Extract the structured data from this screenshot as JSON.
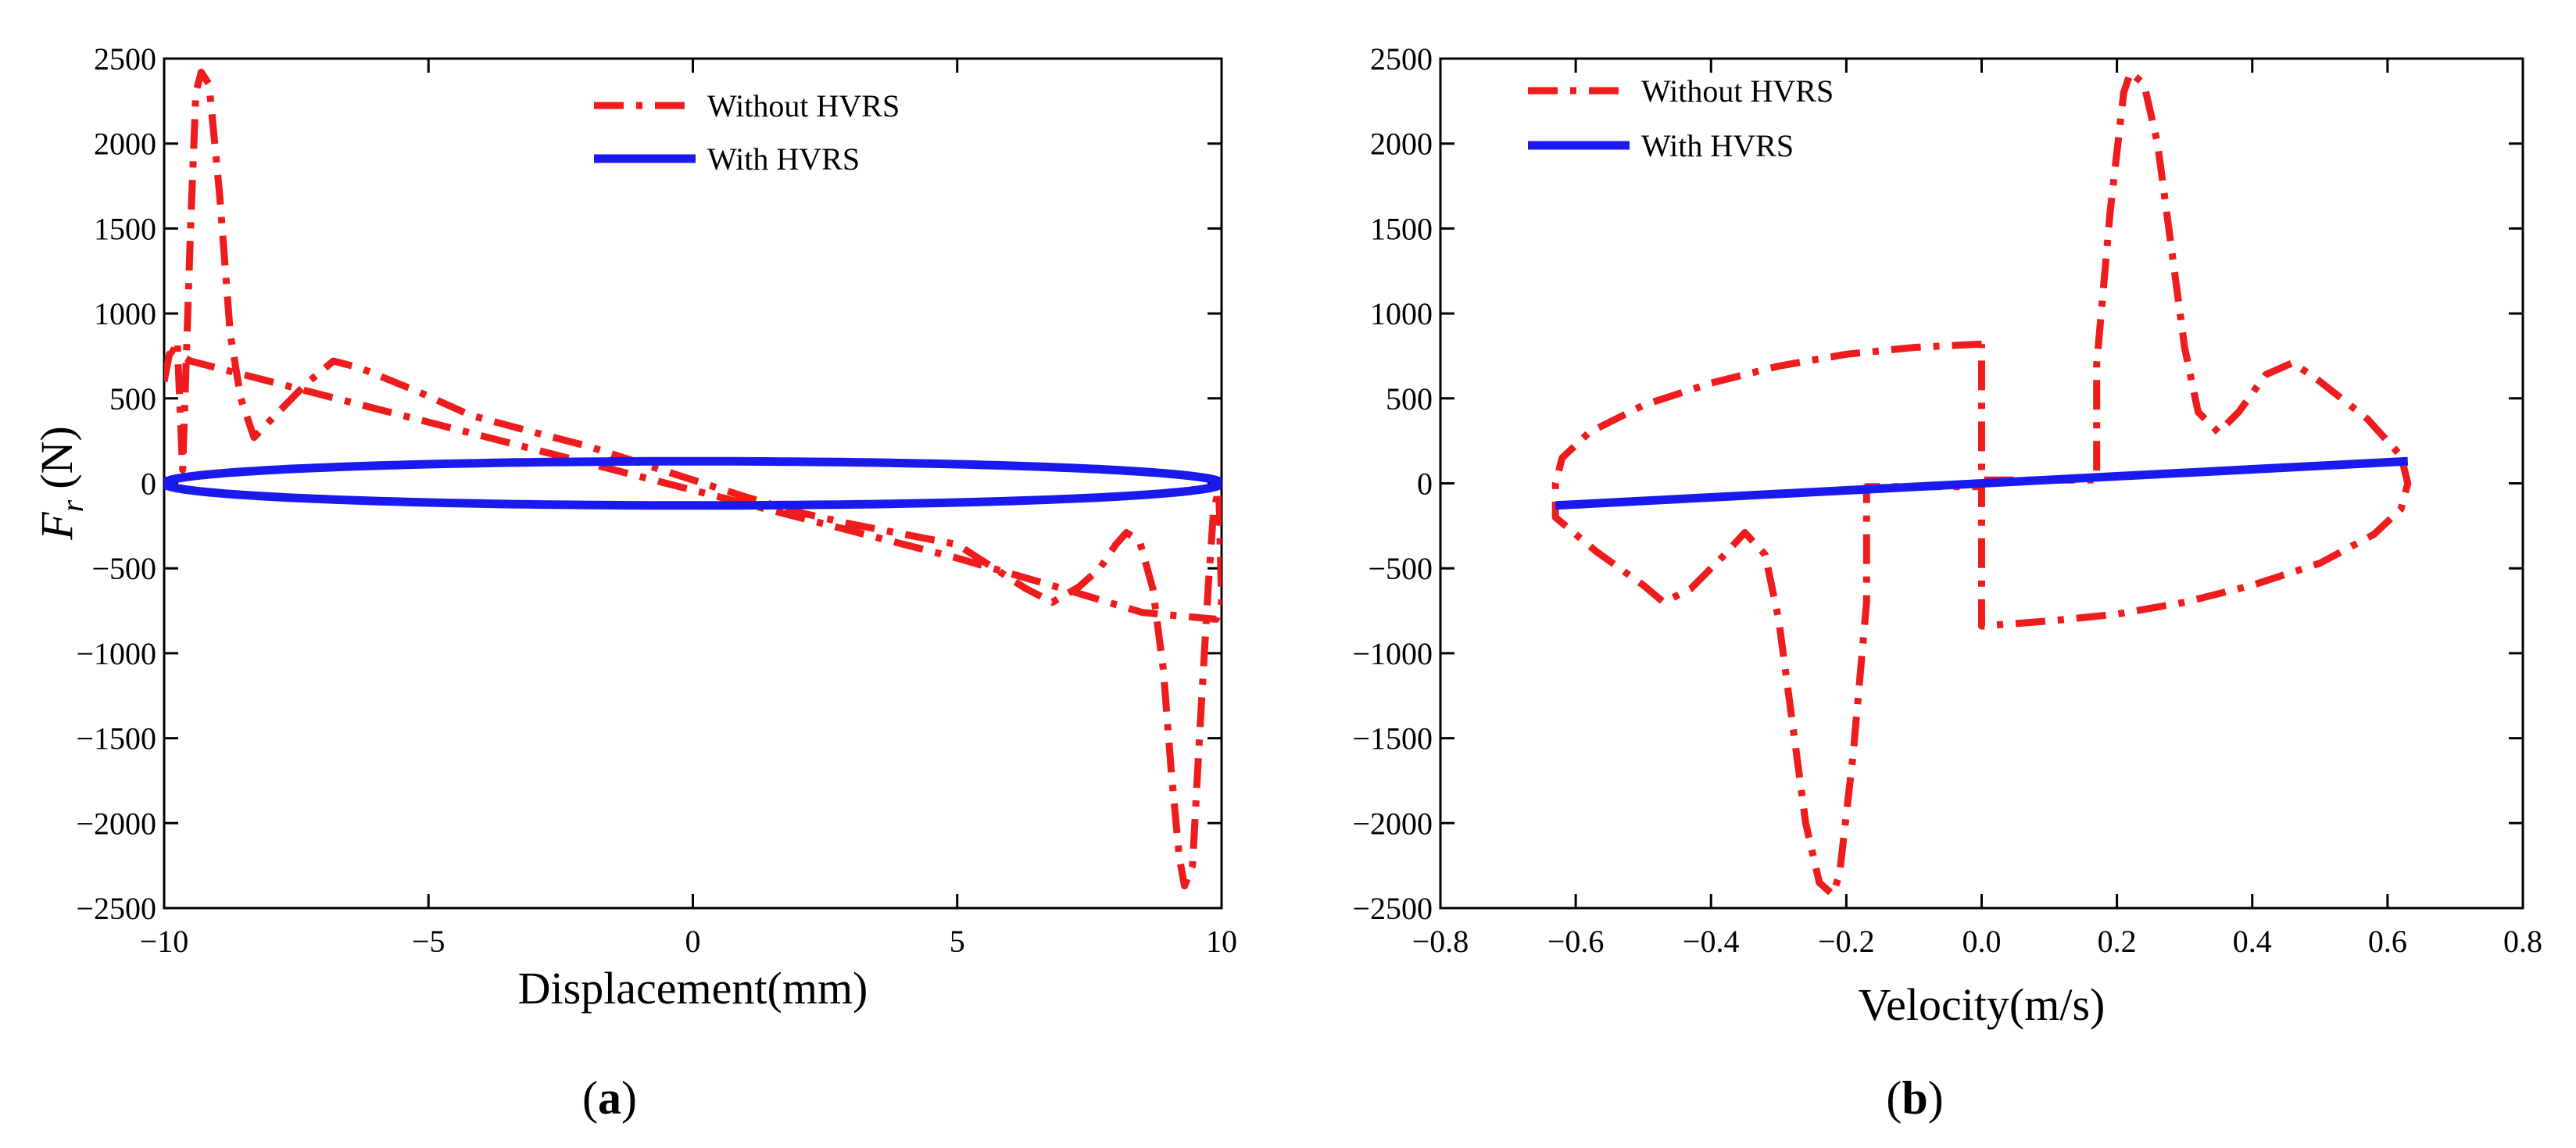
{
  "chart_data": [
    {
      "type": "line",
      "panel_label": [
        "(",
        "a",
        ")"
      ],
      "xlabel": "Displacement(mm)",
      "ylabel_main": "F",
      "ylabel_sub": "r",
      "ylabel_unit": "(N)",
      "xlim": [
        -10,
        10
      ],
      "ylim": [
        -2500,
        2500
      ],
      "xticks": [
        "−10",
        "−5",
        "0",
        "5",
        "10"
      ],
      "yticks": [
        "2500",
        "2000",
        "1500",
        "1000",
        "500",
        "0",
        "−500",
        "−1000",
        "−1500",
        "−2000",
        "−2500"
      ],
      "xtick_values": [
        -10,
        -5,
        0,
        5,
        10
      ],
      "ytick_values": [
        2500,
        2000,
        1500,
        1000,
        500,
        0,
        -500,
        -1000,
        -1500,
        -2000,
        -2500
      ],
      "legend_position": "top-center",
      "series": [
        {
          "name": "Without HVRS",
          "color": "#ee1c1c",
          "style": "dash-dot",
          "points": [
            [
              -10,
              600
            ],
            [
              -9.9,
              760
            ],
            [
              -9.75,
              820
            ],
            [
              -9.65,
              80
            ],
            [
              -9.5,
              1500
            ],
            [
              -9.4,
              2300
            ],
            [
              -9.3,
              2420
            ],
            [
              -9.15,
              2350
            ],
            [
              -8.95,
              1700
            ],
            [
              -8.75,
              880
            ],
            [
              -8.55,
              500
            ],
            [
              -8.3,
              270
            ],
            [
              -7.9,
              400
            ],
            [
              -7.3,
              590
            ],
            [
              -6.8,
              720
            ],
            [
              -6.3,
              680
            ],
            [
              -5.2,
              540
            ],
            [
              -4.2,
              400
            ],
            [
              -3.0,
              300
            ],
            [
              -2.0,
              220
            ],
            [
              -1.0,
              120
            ],
            [
              0,
              20
            ],
            [
              1.0,
              -80
            ],
            [
              2.0,
              -170
            ],
            [
              3.0,
              -240
            ],
            [
              4.0,
              -300
            ],
            [
              5.0,
              -360
            ],
            [
              5.8,
              -520
            ],
            [
              6.3,
              -620
            ],
            [
              6.8,
              -700
            ],
            [
              7.3,
              -610
            ],
            [
              7.7,
              -500
            ],
            [
              8.0,
              -360
            ],
            [
              8.2,
              -290
            ],
            [
              8.45,
              -340
            ],
            [
              8.7,
              -620
            ],
            [
              8.9,
              -1100
            ],
            [
              9.05,
              -1700
            ],
            [
              9.2,
              -2200
            ],
            [
              9.3,
              -2370
            ],
            [
              9.45,
              -2250
            ],
            [
              9.6,
              -1400
            ],
            [
              9.75,
              -600
            ],
            [
              9.85,
              -150
            ],
            [
              9.95,
              -40
            ],
            [
              10,
              -700
            ],
            [
              9.9,
              -800
            ],
            [
              8.5,
              -760
            ],
            [
              7.0,
              -620
            ],
            [
              5.0,
              -440
            ],
            [
              3.0,
              -280
            ],
            [
              1.0,
              -120
            ],
            [
              -1.0,
              40
            ],
            [
              -3.0,
              200
            ],
            [
              -5.0,
              360
            ],
            [
              -7.0,
              520
            ],
            [
              -8.5,
              640
            ],
            [
              -9.5,
              720
            ],
            [
              -9.9,
              790
            ]
          ]
        },
        {
          "name": "With HVRS",
          "color": "#1a1aee",
          "style": "solid",
          "shape": "ellipse",
          "center": [
            0,
            0
          ],
          "semi_axis_x": 10,
          "semi_axis_y": 130,
          "tilt": [
            10,
            -10
          ]
        }
      ]
    },
    {
      "type": "line",
      "panel_label": [
        "(",
        "b",
        ")"
      ],
      "xlabel": "Velocity(m/s)",
      "xlim": [
        -0.8,
        0.8
      ],
      "ylim": [
        -2500,
        2500
      ],
      "xticks": [
        "−0.8",
        "−0.6",
        "−0.4",
        "−0.2",
        "0.0",
        "0.2",
        "0.4",
        "0.6",
        "0.8"
      ],
      "yticks": [
        "2500",
        "2000",
        "1500",
        "1000",
        "500",
        "0",
        "−500",
        "−1000",
        "−1500",
        "−2000",
        "−2500"
      ],
      "xtick_values": [
        -0.8,
        -0.6,
        -0.4,
        -0.2,
        0.0,
        0.2,
        0.4,
        0.6,
        0.8
      ],
      "ytick_values": [
        2500,
        2000,
        1500,
        1000,
        500,
        0,
        -500,
        -1000,
        -1500,
        -2000,
        -2500
      ],
      "legend_position": "top-left",
      "series": [
        {
          "name": "Without HVRS",
          "color": "#ee1c1c",
          "style": "dash-dot",
          "points": [
            [
              0.0,
              820
            ],
            [
              -0.1,
              800
            ],
            [
              -0.2,
              760
            ],
            [
              -0.3,
              690
            ],
            [
              -0.4,
              590
            ],
            [
              -0.5,
              460
            ],
            [
              -0.58,
              300
            ],
            [
              -0.62,
              150
            ],
            [
              -0.63,
              0
            ],
            [
              -0.63,
              -200
            ],
            [
              -0.57,
              -400
            ],
            [
              -0.5,
              -600
            ],
            [
              -0.47,
              -700
            ],
            [
              -0.43,
              -620
            ],
            [
              -0.38,
              -420
            ],
            [
              -0.35,
              -290
            ],
            [
              -0.32,
              -420
            ],
            [
              -0.3,
              -800
            ],
            [
              -0.28,
              -1400
            ],
            [
              -0.26,
              -2000
            ],
            [
              -0.24,
              -2350
            ],
            [
              -0.22,
              -2420
            ],
            [
              -0.21,
              -2300
            ],
            [
              -0.19,
              -1600
            ],
            [
              -0.17,
              -700
            ],
            [
              -0.17,
              -20
            ],
            [
              0.0,
              -20
            ],
            [
              0.0,
              -840
            ],
            [
              0.1,
              -810
            ],
            [
              0.2,
              -770
            ],
            [
              0.3,
              -700
            ],
            [
              0.4,
              -600
            ],
            [
              0.5,
              -470
            ],
            [
              0.58,
              -300
            ],
            [
              0.62,
              -150
            ],
            [
              0.63,
              0
            ],
            [
              0.62,
              160
            ],
            [
              0.57,
              380
            ],
            [
              0.5,
              600
            ],
            [
              0.46,
              710
            ],
            [
              0.42,
              640
            ],
            [
              0.38,
              420
            ],
            [
              0.35,
              300
            ],
            [
              0.32,
              420
            ],
            [
              0.3,
              800
            ],
            [
              0.28,
              1400
            ],
            [
              0.26,
              2000
            ],
            [
              0.24,
              2350
            ],
            [
              0.22,
              2420
            ],
            [
              0.21,
              2300
            ],
            [
              0.19,
              1600
            ],
            [
              0.17,
              700
            ],
            [
              0.17,
              20
            ],
            [
              0.0,
              20
            ],
            [
              0.0,
              820
            ]
          ]
        },
        {
          "name": "With HVRS",
          "color": "#1a1aee",
          "style": "solid",
          "points": [
            [
              -0.63,
              -130
            ],
            [
              0.63,
              130
            ]
          ]
        }
      ]
    }
  ]
}
